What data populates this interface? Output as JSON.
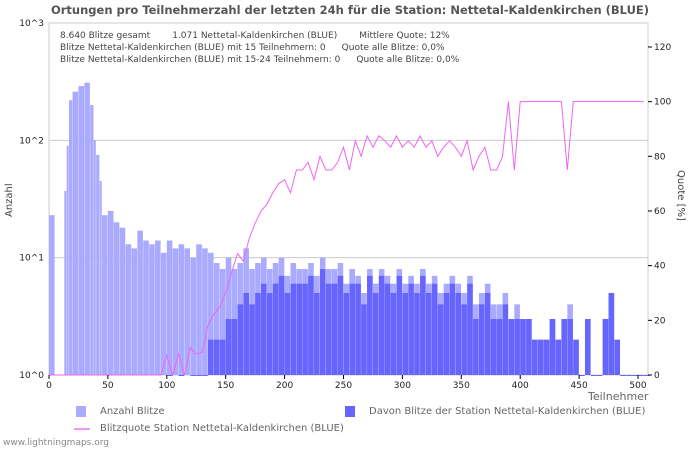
{
  "chart_data": {
    "type": "bar",
    "title": "Ortungen pro Teilnehmerzahl der letzten 24h für die Station: Nettetal-Kaldenkirchen (BLUE)",
    "xlabel": "Teilnehmer",
    "ylabel": "Anzahl",
    "y2label": "Quote [%]",
    "xlim": [
      0,
      510
    ],
    "ylim_log": [
      0,
      3
    ],
    "y2lim": [
      0,
      130
    ],
    "xticks": [
      "0",
      "50",
      "100",
      "150",
      "200",
      "250",
      "300",
      "350",
      "400",
      "450",
      "500"
    ],
    "yticks": [
      "10^0",
      "10^1",
      "10^2",
      "10^3"
    ],
    "y2ticks": [
      "0",
      "20",
      "40",
      "60",
      "80",
      "100",
      "120"
    ],
    "x": [
      0,
      5,
      10,
      13,
      15,
      17,
      20,
      25,
      30,
      35,
      38,
      40,
      43,
      45,
      50,
      55,
      60,
      65,
      70,
      75,
      80,
      85,
      90,
      95,
      100,
      105,
      110,
      115,
      120,
      125,
      130,
      135,
      140,
      145,
      150,
      155,
      160,
      165,
      170,
      175,
      180,
      185,
      190,
      195,
      200,
      205,
      210,
      215,
      220,
      225,
      230,
      235,
      240,
      245,
      250,
      255,
      260,
      265,
      270,
      275,
      280,
      285,
      290,
      295,
      300,
      305,
      310,
      315,
      320,
      325,
      330,
      335,
      340,
      345,
      350,
      355,
      360,
      365,
      370,
      375,
      380,
      385,
      390,
      395,
      400,
      405,
      410,
      415,
      420,
      425,
      430,
      435,
      440,
      445,
      450,
      455,
      460,
      465,
      470,
      475,
      480,
      485,
      490,
      495,
      500,
      505
    ],
    "series": [
      {
        "name": "Anzahl Blitze",
        "color": "#aaaaff",
        "values": [
          23,
          0,
          0,
          37,
          90,
          220,
          260,
          290,
          310,
          200,
          100,
          75,
          45,
          23,
          25,
          20,
          18,
          13,
          12,
          17,
          14,
          13,
          14,
          11,
          14,
          12,
          13,
          12,
          10,
          13,
          12,
          11,
          9,
          8,
          10,
          8,
          9,
          12,
          8,
          9,
          10,
          8,
          9,
          10,
          7,
          9,
          8,
          8,
          9,
          7,
          10,
          8,
          8,
          9,
          6,
          8,
          7,
          5,
          8,
          6,
          8,
          7,
          6,
          8,
          6,
          7,
          6,
          8,
          6,
          7,
          5,
          6,
          7,
          6,
          5,
          7,
          4,
          5,
          6,
          4,
          4,
          5,
          3,
          4,
          3,
          3,
          2,
          2,
          2,
          3,
          2,
          3,
          4,
          2,
          1,
          3,
          1,
          1,
          3,
          5,
          2,
          1,
          1,
          1,
          1,
          1
        ]
      },
      {
        "name": "Davon Blitze der Station Nettetal-Kaldenkirchen (BLUE)",
        "color": "#6666ff",
        "values": [
          0,
          0,
          0,
          0,
          0,
          0,
          0,
          0,
          0,
          0,
          0,
          0,
          0,
          0,
          0,
          0,
          0,
          0,
          0,
          0,
          0,
          0,
          0,
          0,
          1,
          0,
          1,
          0,
          1,
          1,
          1,
          2,
          2,
          2,
          3,
          3,
          4,
          5,
          4,
          5,
          6,
          5,
          6,
          7,
          5,
          6,
          6,
          6,
          7,
          5,
          8,
          6,
          6,
          7,
          5,
          6,
          6,
          4,
          7,
          5,
          7,
          6,
          5,
          7,
          5,
          6,
          5,
          7,
          5,
          6,
          4,
          5,
          6,
          5,
          4,
          6,
          3,
          4,
          5,
          3,
          3,
          4,
          3,
          3,
          3,
          3,
          2,
          2,
          2,
          3,
          2,
          3,
          3,
          2,
          1,
          3,
          1,
          1,
          3,
          5,
          2,
          1,
          1,
          1,
          1,
          1
        ]
      },
      {
        "name": "Blitzquote Station Nettetal-Kaldenkirchen (BLUE)",
        "color": "#ee66ee",
        "type": "line"
      }
    ]
  },
  "info": {
    "line1a": "8.640 Blitze gesamt",
    "line1b": "1.071 Nettetal-Kaldenkirchen (BLUE)",
    "line1c": "Mittlere Quote: 12%",
    "line2a": "Blitze Nettetal-Kaldenkirchen (BLUE) mit 15 Teilnehmern: 0",
    "line2b": "Quote alle Blitze: 0,0%",
    "line3a": "Blitze Nettetal-Kaldenkirchen (BLUE) mit 15-24 Teilnehmern: 0",
    "line3b": "Quote alle Blitze: 0,0%"
  },
  "legend": {
    "a": "Anzahl Blitze",
    "b": "Davon Blitze der Station Nettetal-Kaldenkirchen (BLUE)",
    "c": "Blitzquote Station Nettetal-Kaldenkirchen (BLUE)"
  },
  "footer": "www.lightningmaps.org"
}
